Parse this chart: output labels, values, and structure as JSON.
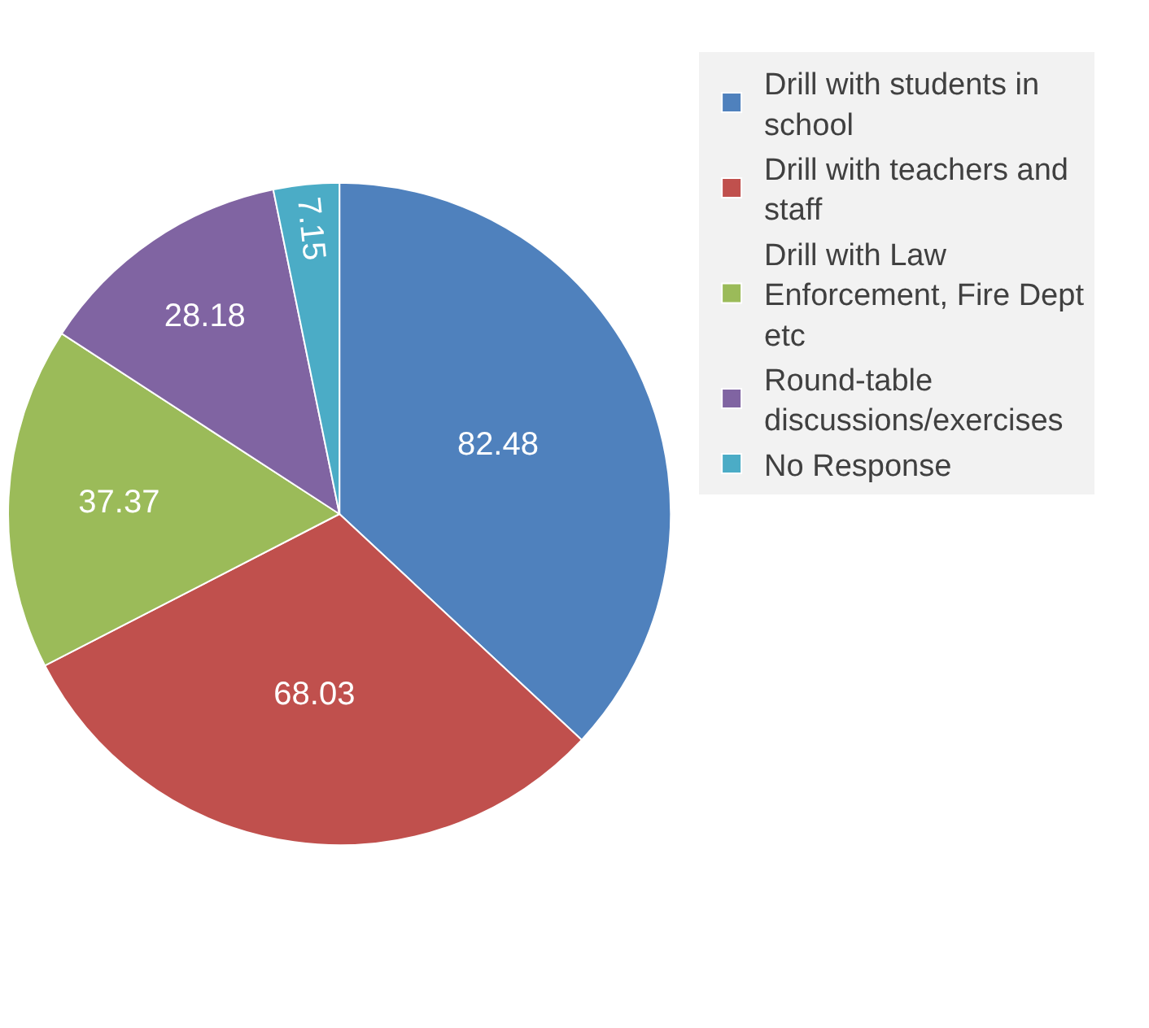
{
  "chart_data": {
    "type": "pie",
    "categories": [
      "Drill with students in school",
      "Drill with teachers and staff",
      "Drill with Law Enforcement, Fire Dept etc",
      "Round-table discussions/exercises",
      "No Response"
    ],
    "values": [
      82.48,
      68.03,
      37.37,
      28.18,
      7.15
    ],
    "colors": [
      "#4f81bd",
      "#c0504d",
      "#9bbb59",
      "#8064a2",
      "#4bacc6"
    ],
    "data_labels": true,
    "legend": "right"
  }
}
